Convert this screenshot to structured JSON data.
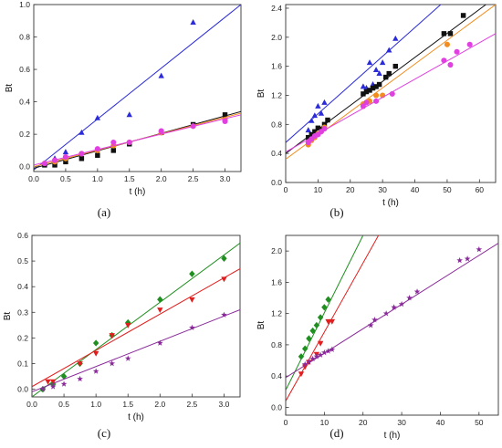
{
  "panel_labels": [
    "(a)",
    "(b)",
    "(c)",
    "(d)"
  ],
  "colors": {
    "blue": "#2b2bd9",
    "black": "#111111",
    "orange": "#f28c1c",
    "magenta": "#e040e0",
    "green": "#1f8f1f",
    "red": "#e11e1e",
    "purple": "#8a2a9a",
    "axis": "#333333"
  },
  "chart_data": [
    {
      "type": "scatter",
      "panel": "(a)",
      "xlabel": "t (h)",
      "ylabel": "Bt",
      "xlim": [
        0.0,
        3.25
      ],
      "ylim": [
        -0.03,
        1.0
      ],
      "xticks": [
        "0.0",
        "0.5",
        "1.0",
        "1.5",
        "2.0",
        "2.5",
        "3.0"
      ],
      "yticks": [
        "0.0",
        "0.2",
        "0.4",
        "0.6",
        "0.8",
        "1.0"
      ],
      "xtick_values": [
        0.0,
        0.5,
        1.0,
        1.5,
        2.0,
        2.5,
        3.0
      ],
      "ytick_values": [
        0.0,
        0.2,
        0.4,
        0.6,
        0.8,
        1.0
      ],
      "series": [
        {
          "color": "blue",
          "marker": "triangle-up",
          "x": [
            0.17,
            0.33,
            0.5,
            0.75,
            1.0,
            1.5,
            2.0,
            2.5
          ],
          "y": [
            0.02,
            0.05,
            0.09,
            0.21,
            0.3,
            0.32,
            0.56,
            0.89
          ],
          "fit": [
            [
              0.0,
              -0.02
            ],
            [
              3.25,
              1.0
            ]
          ]
        },
        {
          "color": "black",
          "marker": "square",
          "x": [
            0.17,
            0.33,
            0.5,
            0.75,
            1.0,
            1.25,
            1.5,
            2.0,
            2.5,
            3.0
          ],
          "y": [
            0.01,
            0.01,
            0.03,
            0.05,
            0.07,
            0.1,
            0.14,
            0.21,
            0.26,
            0.32
          ],
          "fit": [
            [
              0.0,
              -0.01
            ],
            [
              3.25,
              0.34
            ]
          ]
        },
        {
          "color": "orange",
          "marker": "circle",
          "x": [
            0.17,
            0.33,
            0.5,
            0.75,
            1.0,
            1.25,
            1.5,
            2.0,
            2.5,
            3.0
          ],
          "y": [
            0.02,
            0.03,
            0.05,
            0.08,
            0.1,
            0.13,
            0.15,
            0.21,
            0.25,
            0.29
          ],
          "fit": [
            [
              0.0,
              0.0
            ],
            [
              3.25,
              0.33
            ]
          ]
        },
        {
          "color": "magenta",
          "marker": "circle",
          "x": [
            0.17,
            0.33,
            0.5,
            0.75,
            1.0,
            1.25,
            1.5,
            2.0,
            2.5,
            3.0
          ],
          "y": [
            0.02,
            0.04,
            0.06,
            0.08,
            0.11,
            0.15,
            0.15,
            0.22,
            0.25,
            0.28
          ],
          "fit": [
            [
              0.0,
              0.01
            ],
            [
              3.25,
              0.32
            ]
          ]
        }
      ]
    },
    {
      "type": "scatter",
      "panel": "(b)",
      "xlabel": "t (h)",
      "ylabel": "Bt",
      "xlim": [
        0,
        65
      ],
      "ylim": [
        0.0,
        2.45
      ],
      "xticks": [
        "0",
        "10",
        "20",
        "30",
        "40",
        "50",
        "60"
      ],
      "yticks": [
        "0.0",
        "0.4",
        "0.8",
        "1.2",
        "1.6",
        "2.0",
        "2.4"
      ],
      "xtick_values": [
        0,
        10,
        20,
        30,
        40,
        50,
        60
      ],
      "ytick_values": [
        0.0,
        0.4,
        0.8,
        1.2,
        1.6,
        2.0,
        2.4
      ],
      "series": [
        {
          "color": "blue",
          "marker": "triangle-up",
          "x": [
            7,
            8,
            9,
            10,
            11,
            12,
            24,
            25,
            26,
            27,
            28,
            29,
            30,
            32,
            34
          ],
          "y": [
            0.72,
            0.85,
            0.92,
            1.05,
            0.95,
            1.1,
            1.32,
            1.3,
            1.65,
            1.35,
            1.55,
            1.5,
            1.65,
            1.82,
            1.98
          ],
          "fit": [
            [
              0,
              0.55
            ],
            [
              48,
              2.45
            ]
          ]
        },
        {
          "color": "black",
          "marker": "square",
          "x": [
            7,
            8,
            9,
            10,
            11,
            12,
            13,
            24,
            25,
            26,
            27,
            28,
            29,
            31,
            32,
            34,
            49,
            51,
            55
          ],
          "y": [
            0.62,
            0.66,
            0.7,
            0.75,
            0.73,
            0.8,
            0.86,
            1.22,
            1.25,
            1.27,
            1.3,
            1.32,
            1.35,
            1.45,
            1.5,
            1.6,
            2.05,
            2.05,
            2.3
          ],
          "fit": [
            [
              0,
              0.4
            ],
            [
              62,
              2.45
            ]
          ]
        },
        {
          "color": "orange",
          "marker": "circle",
          "x": [
            7,
            8,
            9,
            10,
            11,
            12,
            24,
            26,
            28,
            30,
            50
          ],
          "y": [
            0.52,
            0.58,
            0.62,
            0.67,
            0.7,
            0.76,
            1.08,
            1.12,
            1.2,
            1.2,
            1.9
          ],
          "fit": [
            [
              0,
              0.32
            ],
            [
              65,
              2.45
            ]
          ]
        },
        {
          "color": "magenta",
          "marker": "circle",
          "x": [
            7,
            8,
            9,
            10,
            11,
            12,
            24,
            25,
            28,
            33,
            49,
            51,
            53,
            57
          ],
          "y": [
            0.55,
            0.6,
            0.64,
            0.66,
            0.7,
            0.74,
            1.05,
            1.1,
            1.12,
            1.22,
            1.68,
            1.62,
            1.8,
            1.9
          ],
          "fit": [
            [
              0,
              0.42
            ],
            [
              65,
              2.05
            ]
          ]
        }
      ]
    },
    {
      "type": "scatter",
      "panel": "(c)",
      "xlabel": "t (h)",
      "ylabel": "Bt",
      "xlim": [
        0.0,
        3.25
      ],
      "ylim": [
        -0.03,
        0.6
      ],
      "xticks": [
        "0.0",
        "0.5",
        "1.0",
        "1.5",
        "2.0",
        "2.5",
        "3.0"
      ],
      "yticks": [
        "0.0",
        "0.1",
        "0.2",
        "0.3",
        "0.4",
        "0.5",
        "0.6"
      ],
      "xtick_values": [
        0.0,
        0.5,
        1.0,
        1.5,
        2.0,
        2.5,
        3.0
      ],
      "ytick_values": [
        0.0,
        0.1,
        0.2,
        0.3,
        0.4,
        0.5,
        0.6
      ],
      "series": [
        {
          "color": "green",
          "marker": "diamond",
          "x": [
            0.17,
            0.33,
            0.5,
            0.75,
            1.0,
            1.25,
            1.5,
            2.0,
            2.5,
            3.0
          ],
          "y": [
            0.0,
            0.02,
            0.05,
            0.1,
            0.18,
            0.21,
            0.26,
            0.35,
            0.45,
            0.51
          ],
          "fit": [
            [
              0.0,
              -0.03
            ],
            [
              3.25,
              0.57
            ]
          ]
        },
        {
          "color": "red",
          "marker": "triangle-down",
          "x": [
            0.25,
            0.33,
            0.75,
            1.0,
            1.25,
            1.5,
            2.0,
            2.5,
            3.0
          ],
          "y": [
            0.03,
            0.03,
            0.1,
            0.14,
            0.21,
            0.25,
            0.31,
            0.35,
            0.43
          ],
          "fit": [
            [
              0.0,
              0.01
            ],
            [
              3.25,
              0.47
            ]
          ]
        },
        {
          "color": "purple",
          "marker": "star",
          "x": [
            0.17,
            0.33,
            0.5,
            0.75,
            1.0,
            1.25,
            1.5,
            2.0,
            2.5,
            3.0
          ],
          "y": [
            0.0,
            0.01,
            0.02,
            0.04,
            0.07,
            0.1,
            0.12,
            0.18,
            0.24,
            0.29
          ],
          "fit": [
            [
              0.0,
              -0.01
            ],
            [
              3.25,
              0.31
            ]
          ]
        }
      ]
    },
    {
      "type": "scatter",
      "panel": "(d)",
      "xlabel": "t (h)",
      "ylabel": "Bt",
      "xlim": [
        0,
        55
      ],
      "ylim": [
        -0.1,
        2.2
      ],
      "xticks": [
        "0",
        "10",
        "20",
        "30",
        "40",
        "50"
      ],
      "yticks": [
        "0.0",
        "0.4",
        "0.8",
        "1.2",
        "1.6",
        "2.0"
      ],
      "xtick_values": [
        0,
        10,
        20,
        30,
        40,
        50
      ],
      "ytick_values": [
        0.0,
        0.4,
        0.8,
        1.2,
        1.6,
        2.0
      ],
      "series": [
        {
          "color": "green",
          "marker": "diamond",
          "x": [
            4,
            5,
            6,
            7,
            8,
            9,
            10,
            11
          ],
          "y": [
            0.65,
            0.75,
            0.88,
            0.98,
            1.05,
            1.15,
            1.28,
            1.38
          ],
          "fit": [
            [
              0,
              0.22
            ],
            [
              20,
              2.2
            ]
          ]
        },
        {
          "color": "red",
          "marker": "triangle-down",
          "x": [
            4,
            5,
            6,
            8,
            9,
            11,
            12
          ],
          "y": [
            0.43,
            0.52,
            0.58,
            0.68,
            0.82,
            1.1,
            1.1
          ],
          "fit": [
            [
              0,
              0.08
            ],
            [
              24,
              2.2
            ]
          ]
        },
        {
          "color": "purple",
          "marker": "star",
          "x": [
            5,
            6,
            7,
            8,
            9,
            10,
            11,
            12,
            22,
            23,
            26,
            28,
            30,
            32,
            34,
            45,
            47,
            50
          ],
          "y": [
            0.55,
            0.58,
            0.62,
            0.65,
            0.67,
            0.7,
            0.72,
            0.74,
            1.05,
            1.12,
            1.2,
            1.28,
            1.32,
            1.4,
            1.48,
            1.88,
            1.9,
            2.02
          ],
          "fit": [
            [
              0,
              0.38
            ],
            [
              55,
              2.1
            ]
          ]
        }
      ]
    }
  ]
}
